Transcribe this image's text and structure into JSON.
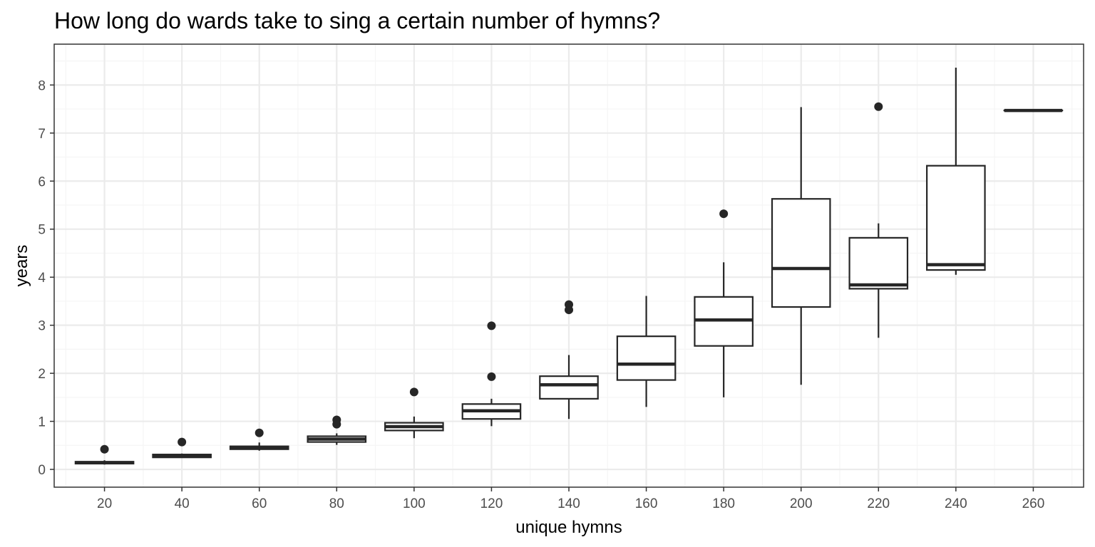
{
  "chart_data": {
    "type": "boxplot",
    "title": "How long do wards take to sing a certain number of hymns?",
    "xlabel": "unique hymns",
    "ylabel": "years",
    "xlim": [
      7,
      273
    ],
    "ylim": [
      -0.37,
      8.85
    ],
    "x_ticks": [
      20,
      40,
      60,
      80,
      100,
      120,
      140,
      160,
      180,
      200,
      220,
      240,
      260
    ],
    "y_ticks": [
      0,
      1,
      2,
      3,
      4,
      5,
      6,
      7,
      8
    ],
    "grid": true,
    "series": [
      {
        "x": 20,
        "lower_whisker": 0.1,
        "q1": 0.12,
        "median": 0.14,
        "q3": 0.16,
        "upper_whisker": 0.19,
        "outliers": [
          0.42
        ]
      },
      {
        "x": 40,
        "lower_whisker": 0.24,
        "q1": 0.25,
        "median": 0.28,
        "q3": 0.31,
        "upper_whisker": 0.33,
        "outliers": [
          0.57
        ]
      },
      {
        "x": 60,
        "lower_whisker": 0.39,
        "q1": 0.42,
        "median": 0.45,
        "q3": 0.48,
        "upper_whisker": 0.56,
        "outliers": [
          0.76
        ]
      },
      {
        "x": 80,
        "lower_whisker": 0.51,
        "q1": 0.57,
        "median": 0.63,
        "q3": 0.69,
        "upper_whisker": 0.75,
        "outliers": [
          0.94,
          1.03
        ]
      },
      {
        "x": 100,
        "lower_whisker": 0.65,
        "q1": 0.81,
        "median": 0.89,
        "q3": 0.97,
        "upper_whisker": 1.1,
        "outliers": [
          1.61
        ]
      },
      {
        "x": 120,
        "lower_whisker": 0.9,
        "q1": 1.05,
        "median": 1.22,
        "q3": 1.36,
        "upper_whisker": 1.47,
        "outliers": [
          1.93,
          2.99
        ]
      },
      {
        "x": 140,
        "lower_whisker": 1.05,
        "q1": 1.47,
        "median": 1.76,
        "q3": 1.94,
        "upper_whisker": 2.38,
        "outliers": [
          3.32,
          3.43
        ]
      },
      {
        "x": 160,
        "lower_whisker": 1.3,
        "q1": 1.86,
        "median": 2.19,
        "q3": 2.77,
        "upper_whisker": 3.61,
        "outliers": []
      },
      {
        "x": 180,
        "lower_whisker": 1.5,
        "q1": 2.57,
        "median": 3.11,
        "q3": 3.59,
        "upper_whisker": 4.31,
        "outliers": [
          5.32
        ]
      },
      {
        "x": 200,
        "lower_whisker": 1.76,
        "q1": 3.38,
        "median": 4.18,
        "q3": 5.63,
        "upper_whisker": 7.54,
        "outliers": []
      },
      {
        "x": 220,
        "lower_whisker": 2.74,
        "q1": 3.76,
        "median": 3.84,
        "q3": 4.82,
        "upper_whisker": 5.12,
        "outliers": [
          7.55
        ]
      },
      {
        "x": 240,
        "lower_whisker": 4.05,
        "q1": 4.15,
        "median": 4.26,
        "q3": 6.32,
        "upper_whisker": 8.36,
        "outliers": []
      },
      {
        "x": 260,
        "lower_whisker": 7.47,
        "q1": 7.47,
        "median": 7.47,
        "q3": 7.47,
        "upper_whisker": 7.47,
        "outliers": []
      }
    ],
    "colors": {
      "box_stroke": "#262626",
      "box_fill": "#ffffff",
      "panel_background": "#ffffff",
      "panel_border": "#333333",
      "grid_major": "#ebebeb",
      "grid_minor": "#f5f5f5",
      "tick_text": "#4d4d4d"
    }
  }
}
